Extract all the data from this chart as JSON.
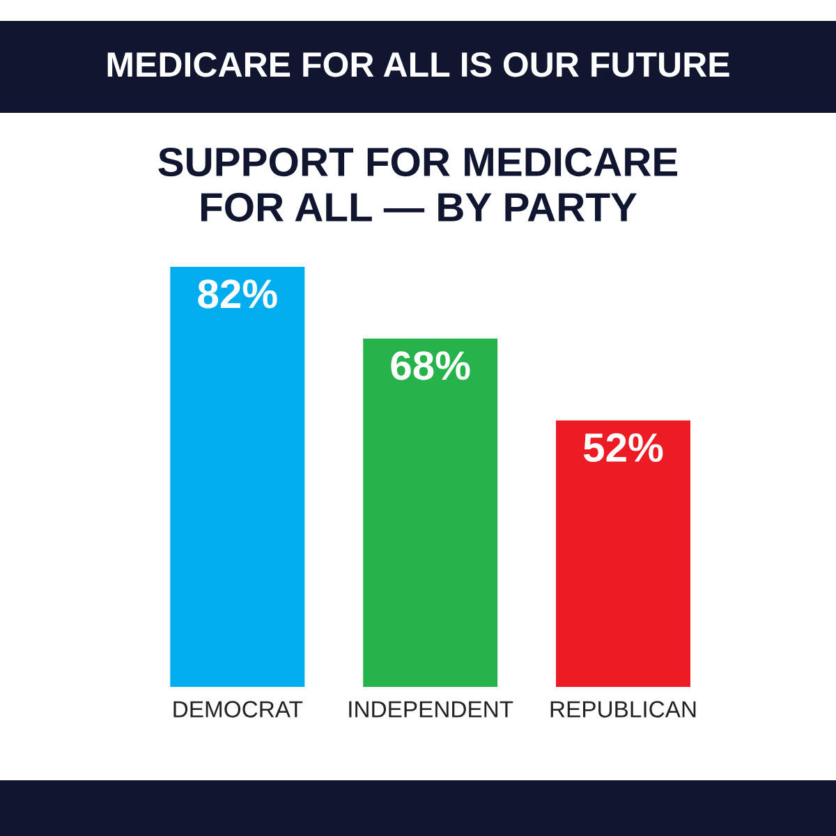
{
  "chart_data": {
    "type": "bar",
    "title": "MEDICARE FOR ALL IS OUR FUTURE",
    "subtitle": "SUPPORT FOR MEDICARE\nFOR ALL — BY PARTY",
    "categories": [
      "DEMOCRAT",
      "INDEPENDENT",
      "REPUBLICAN"
    ],
    "values": [
      82,
      68,
      52
    ],
    "colors": [
      "#00aeef",
      "#27b34b",
      "#ed1c24"
    ],
    "value_labels": [
      "82%",
      "68%",
      "52%"
    ],
    "grid": false,
    "legend": false
  }
}
